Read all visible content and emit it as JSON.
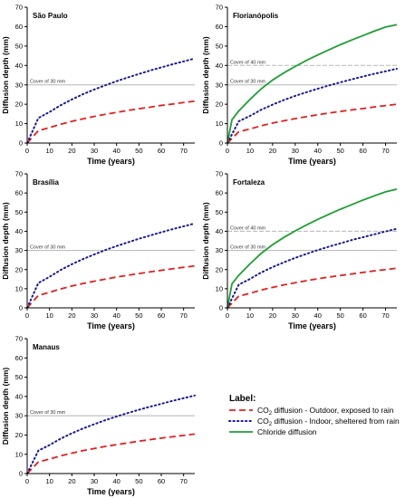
{
  "colors": {
    "co2_outdoor": "#e02020",
    "co2_indoor": "#1a1a8c",
    "chloride": "#1f9e35",
    "cover_line": "#b5b5b5",
    "axis": "#000000"
  },
  "legend": {
    "title": "Label:",
    "items": [
      {
        "pre": "CO",
        "sub": "2",
        "post": " diffusion - Outdoor, exposed to rain",
        "series": "co2_outdoor",
        "style": "dashed"
      },
      {
        "pre": "CO",
        "sub": "2",
        "post": " diffusion - Indoor, sheltered from rain",
        "series": "co2_indoor",
        "style": "dotted"
      },
      {
        "pre": "Chloride diffusion",
        "sub": "",
        "post": "",
        "series": "chloride",
        "style": "solid"
      }
    ]
  },
  "chart_data": [
    {
      "type": "line",
      "title": "São Paulo",
      "xlabel": "Time (years)",
      "ylabel": "Diffusion depth (mm)",
      "xlim": [
        0,
        75
      ],
      "ylim": [
        0,
        70
      ],
      "xticks": [
        "0",
        "10",
        "20",
        "30",
        "40",
        "50",
        "60",
        "70"
      ],
      "yticks": [
        "0",
        "10",
        "20",
        "30",
        "40",
        "50",
        "60",
        "70"
      ],
      "annotations": [
        {
          "text": "Cover of 30 mm",
          "y": 30
        }
      ],
      "series": [
        {
          "key": "co2_outdoor",
          "x": [
            0,
            5,
            10,
            15,
            20,
            25,
            30,
            35,
            40,
            45,
            50,
            55,
            60,
            65,
            70,
            75
          ],
          "y": [
            0,
            6.4,
            8.0,
            9.7,
            11.2,
            12.5,
            13.7,
            14.8,
            15.8,
            16.8,
            17.7,
            18.5,
            19.4,
            20.1,
            20.9,
            21.6
          ]
        },
        {
          "key": "co2_indoor",
          "x": [
            0,
            5,
            10,
            15,
            20,
            25,
            30,
            35,
            40,
            45,
            50,
            55,
            60,
            65,
            70,
            75
          ],
          "y": [
            0,
            12.9,
            16.0,
            19.5,
            22.5,
            25.2,
            27.6,
            29.8,
            31.9,
            33.8,
            35.6,
            37.4,
            39.0,
            40.6,
            42.1,
            43.6
          ]
        }
      ]
    },
    {
      "type": "line",
      "title": "Florianópolis",
      "xlabel": "Time (years)",
      "ylabel": "Diffusion depth (mm)",
      "xlim": [
        0,
        75
      ],
      "ylim": [
        0,
        70
      ],
      "xticks": [
        "0",
        "10",
        "20",
        "30",
        "40",
        "50",
        "60",
        "70"
      ],
      "yticks": [
        "0",
        "10",
        "20",
        "30",
        "40",
        "50",
        "60",
        "70"
      ],
      "annotations": [
        {
          "text": "Cover of 40 mm",
          "y": 40
        },
        {
          "text": "Cover of 30 mm",
          "y": 30
        }
      ],
      "series": [
        {
          "key": "co2_outdoor",
          "x": [
            0,
            5,
            10,
            15,
            20,
            25,
            30,
            35,
            40,
            45,
            50,
            55,
            60,
            65,
            70,
            75
          ],
          "y": [
            0,
            5.8,
            7.3,
            8.9,
            10.3,
            11.5,
            12.6,
            13.6,
            14.6,
            15.5,
            16.3,
            17.1,
            17.8,
            18.6,
            19.3,
            20.0
          ]
        },
        {
          "key": "co2_indoor",
          "x": [
            0,
            5,
            10,
            15,
            20,
            25,
            30,
            35,
            40,
            45,
            50,
            55,
            60,
            65,
            70,
            75
          ],
          "y": [
            0,
            11.2,
            14.0,
            17.2,
            19.8,
            22.2,
            24.3,
            26.2,
            28.0,
            29.7,
            31.3,
            32.8,
            34.3,
            35.7,
            37.0,
            38.3
          ]
        },
        {
          "key": "chloride",
          "x": [
            0,
            2,
            5,
            10,
            15,
            20,
            25,
            30,
            35,
            40,
            45,
            50,
            55,
            60,
            65,
            70,
            75
          ],
          "y": [
            0,
            12.0,
            16.5,
            22.5,
            28.0,
            32.5,
            36.2,
            39.5,
            42.6,
            45.4,
            48.1,
            50.7,
            53.1,
            55.4,
            57.7,
            59.8,
            61.0
          ]
        }
      ]
    },
    {
      "type": "line",
      "title": "Brasília",
      "xlabel": "Time (years)",
      "ylabel": "Diffusion depth (mm)",
      "xlim": [
        0,
        75
      ],
      "ylim": [
        0,
        70
      ],
      "xticks": [
        "0",
        "10",
        "20",
        "30",
        "40",
        "50",
        "60",
        "70"
      ],
      "yticks": [
        "0",
        "10",
        "20",
        "30",
        "40",
        "50",
        "60",
        "70"
      ],
      "annotations": [
        {
          "text": "Cover of 30 mm",
          "y": 30
        }
      ],
      "series": [
        {
          "key": "co2_outdoor",
          "x": [
            0,
            5,
            10,
            15,
            20,
            25,
            30,
            35,
            40,
            45,
            50,
            55,
            60,
            65,
            70,
            75
          ],
          "y": [
            0,
            6.5,
            8.1,
            9.9,
            11.4,
            12.7,
            13.9,
            15.0,
            16.1,
            17.0,
            17.9,
            18.8,
            19.6,
            20.4,
            21.2,
            21.9
          ]
        },
        {
          "key": "co2_indoor",
          "x": [
            0,
            5,
            10,
            15,
            20,
            25,
            30,
            35,
            40,
            45,
            50,
            55,
            60,
            65,
            70,
            75
          ],
          "y": [
            0,
            13.0,
            16.2,
            19.8,
            22.8,
            25.5,
            27.9,
            30.2,
            32.3,
            34.2,
            36.1,
            37.8,
            39.5,
            41.1,
            42.6,
            44.1
          ]
        }
      ]
    },
    {
      "type": "line",
      "title": "Fortaleza",
      "xlabel": "Time (years)",
      "ylabel": "Diffusion depth (mm)",
      "xlim": [
        0,
        75
      ],
      "ylim": [
        0,
        70
      ],
      "xticks": [
        "0",
        "10",
        "20",
        "30",
        "40",
        "50",
        "60",
        "70"
      ],
      "yticks": [
        "0",
        "10",
        "20",
        "30",
        "40",
        "50",
        "60",
        "70"
      ],
      "annotations": [
        {
          "text": "Cover of 40 mm",
          "y": 40
        },
        {
          "text": "Cover of 30 mm",
          "y": 30
        }
      ],
      "series": [
        {
          "key": "co2_outdoor",
          "x": [
            0,
            5,
            10,
            15,
            20,
            25,
            30,
            35,
            40,
            45,
            50,
            55,
            60,
            65,
            70,
            75
          ],
          "y": [
            0,
            6.1,
            7.6,
            9.3,
            10.7,
            12.0,
            13.1,
            14.2,
            15.2,
            16.1,
            16.9,
            17.7,
            18.5,
            19.3,
            20.0,
            20.7
          ]
        },
        {
          "key": "co2_indoor",
          "x": [
            0,
            5,
            10,
            15,
            20,
            25,
            30,
            35,
            40,
            45,
            50,
            55,
            60,
            65,
            70,
            75
          ],
          "y": [
            0,
            12.1,
            15.1,
            18.5,
            21.3,
            23.8,
            26.1,
            28.2,
            30.2,
            32.0,
            33.7,
            35.4,
            36.9,
            38.4,
            39.9,
            41.3
          ]
        },
        {
          "key": "chloride",
          "x": [
            0,
            2,
            5,
            10,
            15,
            20,
            25,
            30,
            35,
            40,
            45,
            50,
            55,
            60,
            65,
            70,
            75
          ],
          "y": [
            0,
            12.5,
            17.0,
            23.0,
            28.5,
            33.0,
            36.8,
            40.2,
            43.3,
            46.2,
            48.9,
            51.5,
            53.9,
            56.3,
            58.5,
            60.6,
            62.0
          ]
        }
      ]
    },
    {
      "type": "line",
      "title": "Manaus",
      "xlabel": "Time (years)",
      "ylabel": "Diffusion depth (mm)",
      "xlim": [
        0,
        75
      ],
      "ylim": [
        0,
        70
      ],
      "xticks": [
        "0",
        "10",
        "20",
        "30",
        "40",
        "50",
        "60",
        "70"
      ],
      "yticks": [
        "0",
        "10",
        "20",
        "30",
        "40",
        "50",
        "60",
        "70"
      ],
      "annotations": [
        {
          "text": "Cover of 30 mm",
          "y": 30
        }
      ],
      "series": [
        {
          "key": "co2_outdoor",
          "x": [
            0,
            5,
            10,
            15,
            20,
            25,
            30,
            35,
            40,
            45,
            50,
            55,
            60,
            65,
            70,
            75
          ],
          "y": [
            0,
            6.0,
            7.5,
            9.2,
            10.6,
            11.9,
            13.0,
            14.1,
            15.0,
            15.9,
            16.8,
            17.6,
            18.4,
            19.1,
            19.8,
            20.5
          ]
        },
        {
          "key": "co2_indoor",
          "x": [
            0,
            5,
            10,
            15,
            20,
            25,
            30,
            35,
            40,
            45,
            50,
            55,
            60,
            65,
            70,
            75
          ],
          "y": [
            0,
            11.9,
            14.8,
            18.1,
            20.9,
            23.4,
            25.6,
            27.7,
            29.6,
            31.4,
            33.1,
            34.7,
            36.2,
            37.7,
            39.1,
            40.5
          ]
        }
      ]
    }
  ]
}
